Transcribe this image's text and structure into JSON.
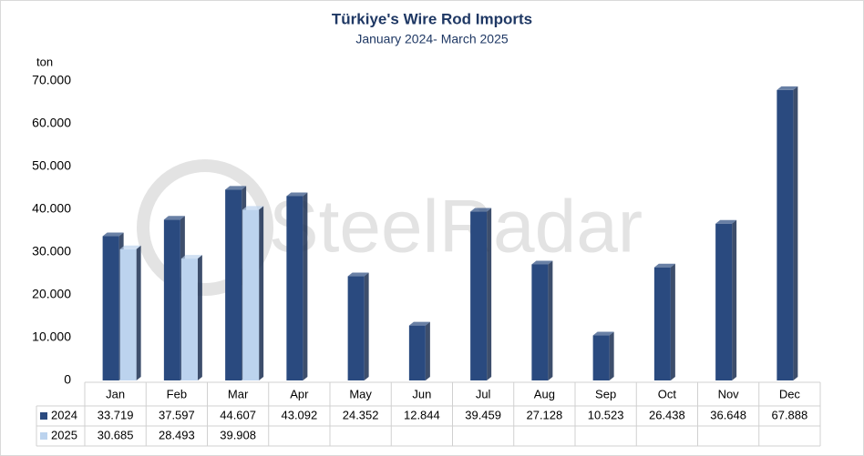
{
  "chart_data": {
    "type": "bar",
    "title": "Türkiye's Wire Rod Imports",
    "subtitle": "January 2024- March 2025",
    "y_label": "ton",
    "watermark": "SteelRadar",
    "categories": [
      "Jan",
      "Feb",
      "Mar",
      "Apr",
      "May",
      "Jun",
      "Jul",
      "Aug",
      "Sep",
      "Oct",
      "Nov",
      "Dec"
    ],
    "series": [
      {
        "name": "2024",
        "color": "#2a4a7f",
        "values": [
          33719,
          37597,
          44607,
          43092,
          24352,
          12844,
          39459,
          27128,
          10523,
          26438,
          36648,
          67888
        ],
        "value_labels": [
          "33.719",
          "37.597",
          "44.607",
          "43.092",
          "24.352",
          "12.844",
          "39.459",
          "27.128",
          "10.523",
          "26.438",
          "36.648",
          "67.888"
        ]
      },
      {
        "name": "2025",
        "color": "#bcd3ee",
        "values": [
          30685,
          28493,
          39908,
          null,
          null,
          null,
          null,
          null,
          null,
          null,
          null,
          null
        ],
        "value_labels": [
          "30.685",
          "28.493",
          "39.908",
          null,
          null,
          null,
          null,
          null,
          null,
          null,
          null,
          null
        ]
      }
    ],
    "ylim": [
      0,
      70000
    ],
    "yticks": [
      0,
      {
        "value": 10000,
        "label": "10.000"
      },
      {
        "value": 20000,
        "label": "20.000"
      },
      {
        "value": 30000,
        "label": "30.000"
      },
      {
        "value": 40000,
        "label": "40.000"
      },
      {
        "value": 50000,
        "label": "50.000"
      },
      {
        "value": 60000,
        "label": "60.000"
      },
      {
        "value": 70000,
        "label": "70.000"
      }
    ],
    "grid": false
  }
}
